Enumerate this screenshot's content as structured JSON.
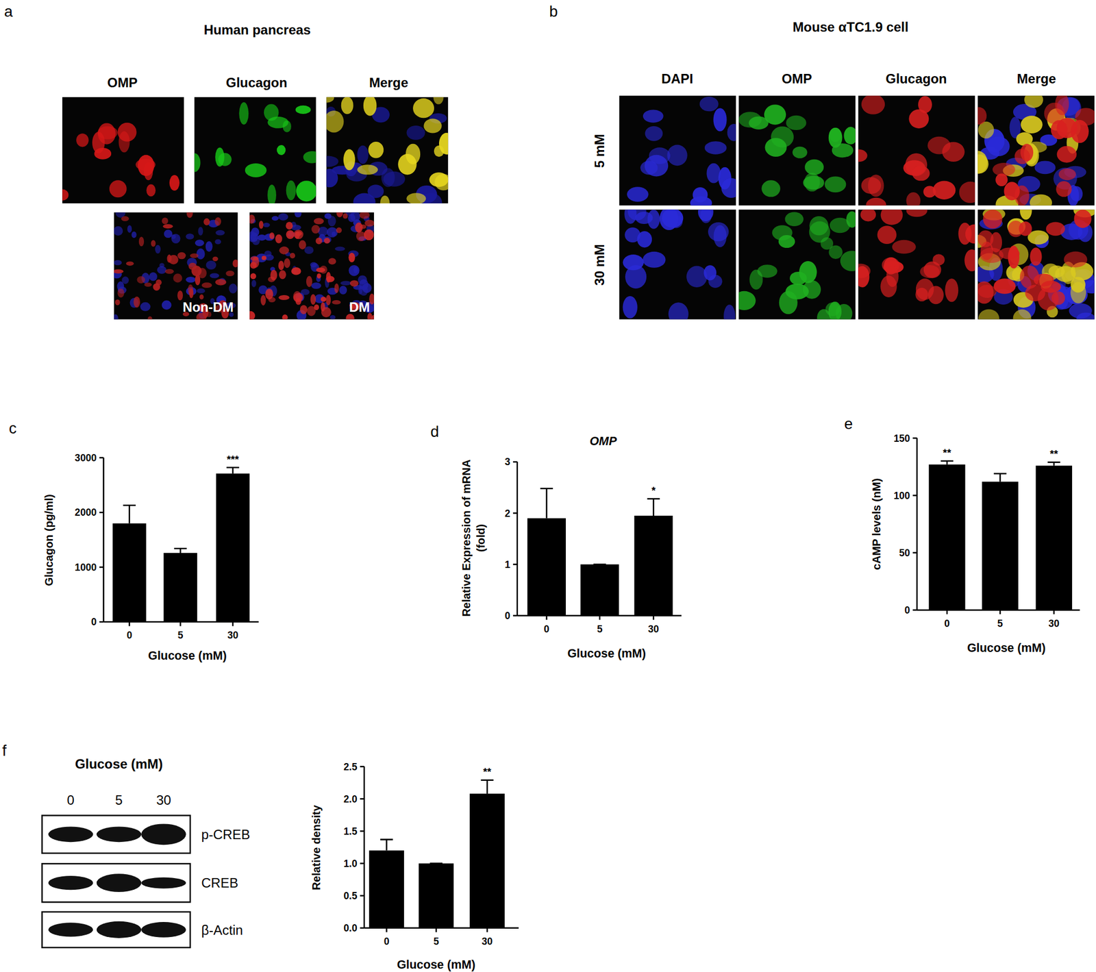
{
  "figure": {
    "a": {
      "panel_label": "a",
      "title": "Human pancreas",
      "columns": [
        "OMP",
        "Glucagon",
        "Merge"
      ],
      "bottom_labels": [
        "Non-DM",
        "DM"
      ]
    },
    "b": {
      "panel_label": "b",
      "title": "Mouse αTC1.9 cell",
      "columns": [
        "DAPI",
        "OMP",
        "Glucagon",
        "Merge"
      ],
      "rows": [
        "5 mM",
        "30 mM"
      ]
    },
    "blot": {
      "panel_label": "f",
      "title": "Glucose (mM)",
      "lanes": [
        "0",
        "5",
        "30"
      ],
      "rows": [
        "p-CREB",
        "CREB",
        "β-Actin"
      ]
    }
  },
  "chart_data": [
    {
      "type": "bar",
      "panel_label": "c",
      "x_label": "Glucose (mM)",
      "y_label": [
        "Glucagon (pg/ml)"
      ],
      "categories": [
        "0",
        "5",
        "30"
      ],
      "values": [
        1800,
        1260,
        2710
      ],
      "errors": [
        330,
        80,
        110
      ],
      "color": "#000000",
      "ylim": [
        0,
        3000
      ],
      "yticks": [
        0,
        1000,
        2000,
        3000
      ],
      "annotations": [
        {
          "index": 2,
          "text": "***"
        }
      ]
    },
    {
      "type": "bar",
      "panel_label": "d",
      "title": "OMP",
      "x_label": "Glucose (mM)",
      "y_label": [
        "Relative Expression of mRNA",
        "(fold)"
      ],
      "categories": [
        "0",
        "5",
        "30"
      ],
      "values": [
        1.9,
        1.0,
        1.95
      ],
      "errors": [
        0.58,
        0,
        0.33
      ],
      "color": "#000000",
      "ylim": [
        0,
        3
      ],
      "yticks": [
        0,
        1,
        2,
        3
      ],
      "annotations": [
        {
          "index": 2,
          "text": "*"
        }
      ]
    },
    {
      "type": "bar",
      "panel_label": "e",
      "x_label": "Glucose (mM)",
      "y_label": [
        "cAMP levels (nM)"
      ],
      "categories": [
        "0",
        "5",
        "30"
      ],
      "values": [
        127,
        112,
        126
      ],
      "errors": [
        3,
        7,
        3
      ],
      "color": "#000000",
      "ylim": [
        0,
        150
      ],
      "yticks": [
        0,
        50,
        100,
        150
      ],
      "annotations": [
        {
          "index": 0,
          "text": "**"
        },
        {
          "index": 2,
          "text": "**"
        }
      ]
    },
    {
      "type": "bar",
      "x_label": "Glucose (mM)",
      "y_label": [
        "Relative density"
      ],
      "categories": [
        "0",
        "5",
        "30"
      ],
      "values": [
        1.2,
        1.0,
        2.08
      ],
      "errors": [
        0.17,
        0,
        0.21
      ],
      "color": "#000000",
      "ylim": [
        0,
        2.5
      ],
      "yticks": [
        {
          "value": 0,
          "label": "0.0"
        },
        0.5,
        {
          "value": 1,
          "label": "1.0"
        },
        1.5,
        {
          "value": 2,
          "label": "2.0"
        },
        2.5
      ],
      "annotations": [
        {
          "index": 2,
          "text": "**"
        }
      ]
    }
  ]
}
